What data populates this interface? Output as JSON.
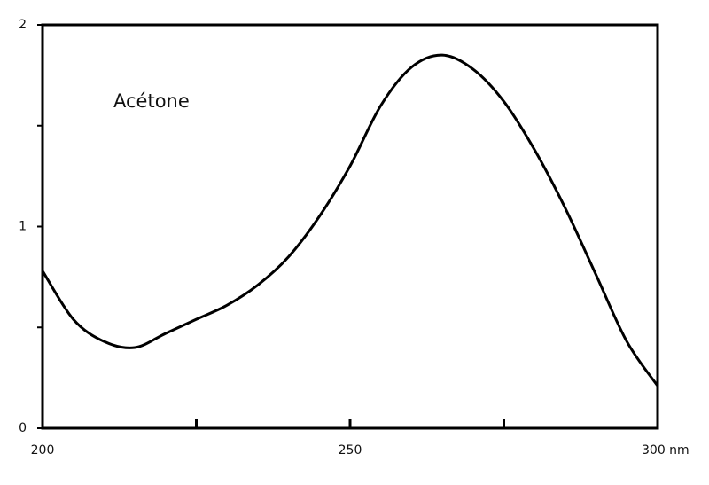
{
  "chart_data": {
    "type": "line",
    "annotation": "Acétone",
    "x": [
      200,
      205,
      210,
      215,
      220,
      225,
      230,
      235,
      240,
      245,
      250,
      255,
      260,
      265,
      270,
      275,
      280,
      285,
      290,
      295,
      300
    ],
    "values": [
      0.78,
      0.54,
      0.43,
      0.4,
      0.47,
      0.54,
      0.61,
      0.71,
      0.85,
      1.05,
      1.3,
      1.6,
      1.79,
      1.85,
      1.78,
      1.62,
      1.38,
      1.09,
      0.76,
      0.43,
      0.21
    ],
    "color": "#000000",
    "xlim": [
      200,
      300
    ],
    "ylim": [
      0,
      2
    ],
    "xticks": [
      200,
      250,
      {
        "value": 300,
        "label": "300 nm"
      }
    ],
    "yticks": [
      0,
      1,
      2
    ],
    "xminorticks": [
      225,
      275
    ],
    "yminorticks": [
      0.5,
      1.5
    ],
    "grid": false
  }
}
